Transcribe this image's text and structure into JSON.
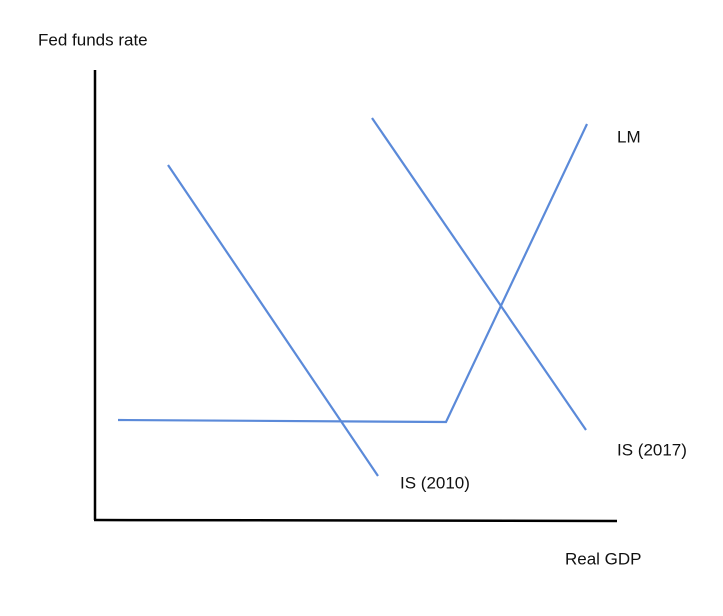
{
  "axes": {
    "y_label": "Fed funds rate",
    "x_label": "Real GDP"
  },
  "curves": [
    {
      "label": "LM"
    },
    {
      "label": "IS (2017)"
    },
    {
      "label": "IS (2010)"
    }
  ]
}
